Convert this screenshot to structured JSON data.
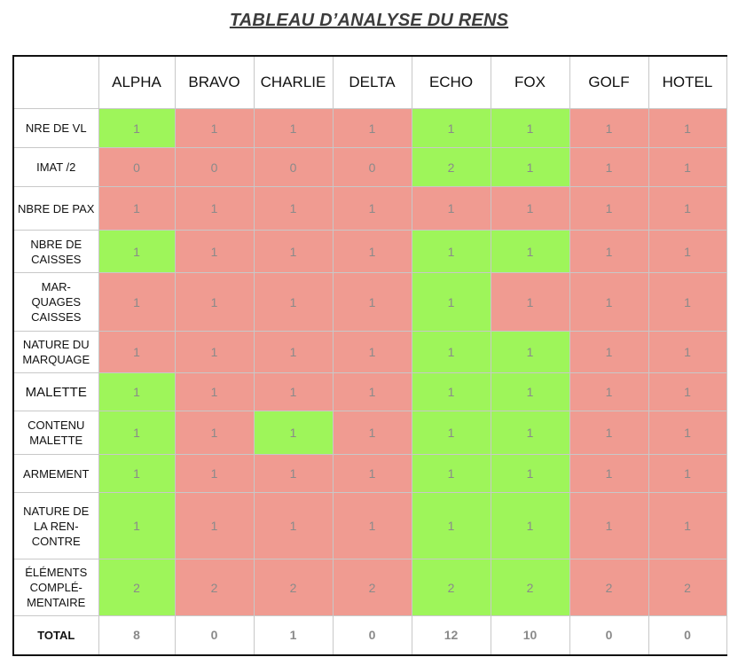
{
  "title": "TABLEAU D’ANALYSE DU RENS",
  "columns": [
    "ALPHA",
    "BRAVO",
    "CHARLIE",
    "DELTA",
    "ECHO",
    "FOX",
    "GOLF",
    "HOTEL"
  ],
  "rows": [
    {
      "label": "NRE DE VL",
      "values": [
        "1",
        "1",
        "1",
        "1",
        "1",
        "1",
        "1",
        "1"
      ],
      "status": [
        "green",
        "red",
        "red",
        "red",
        "green",
        "green",
        "red",
        "red"
      ]
    },
    {
      "label": "IMAT /2",
      "values": [
        "0",
        "0",
        "0",
        "0",
        "2",
        "1",
        "1",
        "1"
      ],
      "status": [
        "red",
        "red",
        "red",
        "red",
        "green",
        "green",
        "red",
        "red"
      ]
    },
    {
      "label": "NBRE DE PAX",
      "values": [
        "1",
        "1",
        "1",
        "1",
        "1",
        "1",
        "1",
        "1"
      ],
      "status": [
        "red",
        "red",
        "red",
        "red",
        "red",
        "red",
        "red",
        "red"
      ]
    },
    {
      "label": "NBRE DE CAISSES",
      "values": [
        "1",
        "1",
        "1",
        "1",
        "1",
        "1",
        "1",
        "1"
      ],
      "status": [
        "green",
        "red",
        "red",
        "red",
        "green",
        "green",
        "red",
        "red"
      ]
    },
    {
      "label": "MAR-QUAGES CAISSES",
      "values": [
        "1",
        "1",
        "1",
        "1",
        "1",
        "1",
        "1",
        "1"
      ],
      "status": [
        "red",
        "red",
        "red",
        "red",
        "green",
        "red",
        "red",
        "red"
      ]
    },
    {
      "label": "NATURE DU MARQUAGE",
      "values": [
        "1",
        "1",
        "1",
        "1",
        "1",
        "1",
        "1",
        "1"
      ],
      "status": [
        "red",
        "red",
        "red",
        "red",
        "green",
        "green",
        "red",
        "red"
      ]
    },
    {
      "label": "MALETTE",
      "values": [
        "1",
        "1",
        "1",
        "1",
        "1",
        "1",
        "1",
        "1"
      ],
      "status": [
        "green",
        "red",
        "red",
        "red",
        "green",
        "green",
        "red",
        "red"
      ]
    },
    {
      "label": "CONTENU MALETTE",
      "values": [
        "1",
        "1",
        "1",
        "1",
        "1",
        "1",
        "1",
        "1"
      ],
      "status": [
        "green",
        "red",
        "green",
        "red",
        "green",
        "green",
        "red",
        "red"
      ]
    },
    {
      "label": "ARMEMENT",
      "values": [
        "1",
        "1",
        "1",
        "1",
        "1",
        "1",
        "1",
        "1"
      ],
      "status": [
        "green",
        "red",
        "red",
        "red",
        "green",
        "green",
        "red",
        "red"
      ]
    },
    {
      "label": "NATURE DE LA REN-CONTRE",
      "values": [
        "1",
        "1",
        "1",
        "1",
        "1",
        "1",
        "1",
        "1"
      ],
      "status": [
        "green",
        "red",
        "red",
        "red",
        "green",
        "green",
        "red",
        "red"
      ]
    },
    {
      "label": "ÉLÉMENTS COMPLÉ-MENTAIRE",
      "values": [
        "2",
        "2",
        "2",
        "2",
        "2",
        "2",
        "2",
        "2"
      ],
      "status": [
        "green",
        "red",
        "red",
        "red",
        "green",
        "green",
        "red",
        "red"
      ]
    }
  ],
  "total": {
    "label": "TOTAL",
    "values": [
      "8",
      "0",
      "1",
      "0",
      "12",
      "10",
      "0",
      "0"
    ]
  },
  "colors": {
    "green": "#9ef55a",
    "red": "#f09b91"
  }
}
